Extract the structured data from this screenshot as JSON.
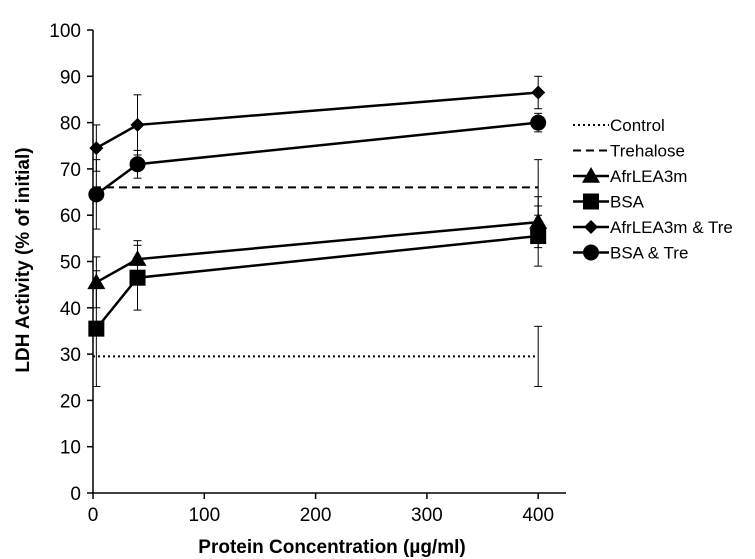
{
  "chart_data": {
    "type": "line",
    "title": "",
    "xlabel": "Protein Concentration (µg/ml)",
    "ylabel": "LDH Activity (% of initial)",
    "xlim": [
      0,
      425
    ],
    "ylim": [
      0,
      100
    ],
    "xticks": [
      0,
      100,
      200,
      300,
      400
    ],
    "yticks": [
      0,
      10,
      20,
      30,
      40,
      50,
      60,
      70,
      80,
      90,
      100
    ],
    "grid": false,
    "legend_position": "right",
    "series": [
      {
        "name": "Control",
        "style": "dotted",
        "marker": "none",
        "x": [
          0,
          400
        ],
        "y": [
          29.5,
          29.5
        ],
        "err": [
          0,
          6.5
        ]
      },
      {
        "name": "Trehalose",
        "style": "dashed",
        "marker": "none",
        "x": [
          0,
          400
        ],
        "y": [
          66,
          66
        ],
        "err": [
          0,
          6
        ]
      },
      {
        "name": "AfrLEA3m",
        "style": "solid",
        "marker": "triangle",
        "x": [
          3,
          40,
          400
        ],
        "y": [
          45.5,
          50.5,
          58.5
        ],
        "err": [
          5.5,
          4,
          5.5
        ]
      },
      {
        "name": "BSA",
        "style": "solid",
        "marker": "square",
        "x": [
          3,
          40,
          400
        ],
        "y": [
          35.5,
          46.5,
          55.5
        ],
        "err": [
          12.5,
          7,
          6.5
        ]
      },
      {
        "name": "AfrLEA3m & Tre",
        "style": "solid",
        "marker": "diamond",
        "x": [
          3,
          40,
          400
        ],
        "y": [
          74.5,
          79.5,
          86.5
        ],
        "err": [
          5,
          6.5,
          3.5
        ]
      },
      {
        "name": "BSA & Tre",
        "style": "solid",
        "marker": "circle",
        "x": [
          3,
          40,
          400
        ],
        "y": [
          64.5,
          71,
          80
        ],
        "err": [
          7.5,
          3,
          2
        ]
      }
    ]
  }
}
